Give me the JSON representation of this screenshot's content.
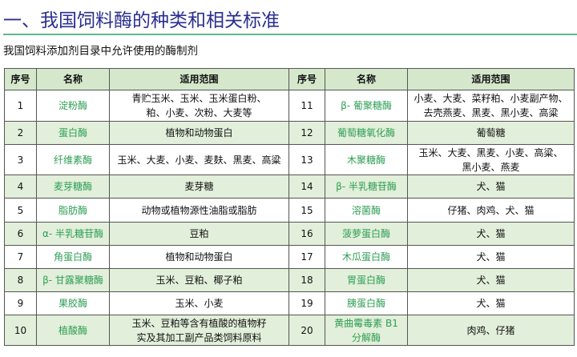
{
  "title": "一、我国饲料酶的种类和相关标准",
  "subtitle": "我国饲料添加剂目录中允许使用的酶制剂",
  "colors": {
    "title": "#2b2f8f",
    "rule": "#5fb98a",
    "header_bg": "#d5e8cc",
    "alt_row_bg": "#e2efda",
    "name_text": "#2e9e55"
  },
  "table": {
    "headers": [
      "序号",
      "名称",
      "适用范围",
      "序号",
      "名称",
      "适用范围"
    ],
    "left": [
      {
        "no": "1",
        "name": [
          "淀粉酶"
        ],
        "scope": [
          "青贮玉米、玉米、玉米蛋白粉、",
          "粕、小麦、次粉、大麦等"
        ]
      },
      {
        "no": "2",
        "name": [
          "蛋白酶"
        ],
        "scope": [
          "植物和动物蛋白"
        ]
      },
      {
        "no": "3",
        "name": [
          "纤维素酶"
        ],
        "scope": [
          "玉米、大麦、小麦、麦麸、黑麦、高粱"
        ]
      },
      {
        "no": "4",
        "name": [
          "麦芽糖酶"
        ],
        "scope": [
          "麦芽糖"
        ]
      },
      {
        "no": "5",
        "name": [
          "脂肪酶"
        ],
        "scope": [
          "动物或植物源性油脂或脂肪"
        ]
      },
      {
        "no": "6",
        "name": [
          "α- 半乳糖苷酶"
        ],
        "scope": [
          "豆粕"
        ]
      },
      {
        "no": "7",
        "name": [
          "角蛋白酶"
        ],
        "scope": [
          "植物和动物蛋白"
        ]
      },
      {
        "no": "8",
        "name": [
          "β- 甘露聚糖酶"
        ],
        "scope": [
          "玉米、豆粕、椰子粕"
        ]
      },
      {
        "no": "9",
        "name": [
          "果胶酶"
        ],
        "scope": [
          "玉米、小麦"
        ]
      },
      {
        "no": "10",
        "name": [
          "植酸酶"
        ],
        "scope": [
          "玉米、豆粕等含有植酸的植物籽",
          "实及其加工副产品类饲料原料"
        ]
      }
    ],
    "right": [
      {
        "no": "11",
        "name": [
          "β- 葡聚糖酶"
        ],
        "scope": [
          "小麦、大麦、菜籽粕、小麦副产物、",
          "去壳燕麦、黑麦、黑小麦、高粱"
        ]
      },
      {
        "no": "12",
        "name": [
          "葡萄糖氧化酶"
        ],
        "scope": [
          "葡萄糖"
        ]
      },
      {
        "no": "13",
        "name": [
          "木聚糖酶"
        ],
        "scope": [
          "玉米、大麦、黑麦、小麦、高粱、",
          "黑小麦、燕麦"
        ]
      },
      {
        "no": "14",
        "name": [
          "β- 半乳糖苷酶"
        ],
        "scope": [
          "犬、猫"
        ]
      },
      {
        "no": "15",
        "name": [
          "溶菌酶"
        ],
        "scope": [
          "仔猪、肉鸡、犬、猫"
        ]
      },
      {
        "no": "16",
        "name": [
          "菠萝蛋白酶"
        ],
        "scope": [
          "犬、猫"
        ]
      },
      {
        "no": "17",
        "name": [
          "木瓜蛋白酶"
        ],
        "scope": [
          "犬、猫"
        ]
      },
      {
        "no": "18",
        "name": [
          "胃蛋白酶"
        ],
        "scope": [
          "犬、猫"
        ]
      },
      {
        "no": "19",
        "name": [
          "胰蛋白酶"
        ],
        "scope": [
          "犬、猫"
        ]
      },
      {
        "no": "20",
        "name": [
          "黄曲霉毒素 B1",
          "分解酶"
        ],
        "scope": [
          "肉鸡、仔猪"
        ]
      }
    ]
  }
}
